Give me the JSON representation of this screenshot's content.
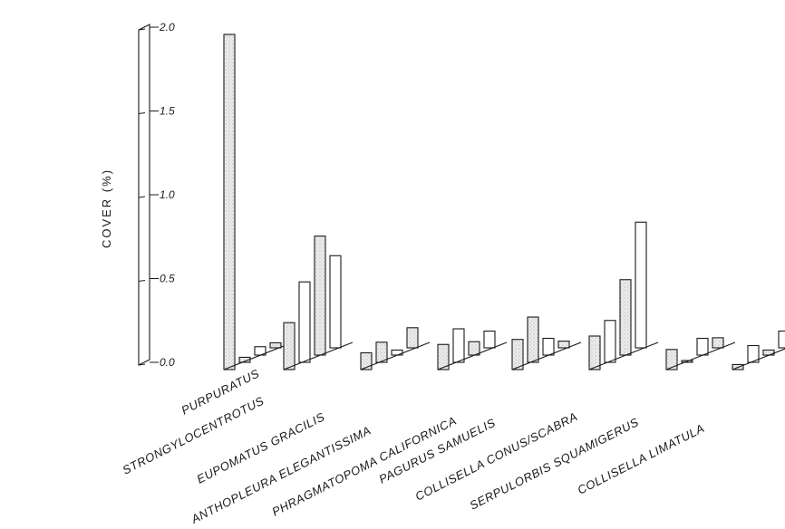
{
  "chart_data": {
    "type": "bar",
    "title": "",
    "ylabel": "COVER (%)",
    "ylim": [
      0,
      2.0
    ],
    "yticks": [
      "0.0",
      "0.5",
      "1.0",
      "1.5",
      "2.0"
    ],
    "categories": [
      "STRONGYLOCENTROTUS PURPURATUS",
      "ANTHOPLEURA ELEGANTISSIMA",
      "EUPOMATUS GRACILIS",
      "PHRAGMATOPOMA CALIFORNICA",
      "PAGURUS SAMUELIS",
      "COLLISELLA CONUS/SCABRA",
      "SERPULORBIS SQUAMIGERUS",
      "COLLISELLA LIMATULA"
    ],
    "label_lines": [
      [
        "STRONGYLOCENTROTUS",
        "PURPURATUS"
      ],
      [
        "ANTHOPLEURA ELEGANTISSIMA"
      ],
      [
        "EUPOMATUS GRACILIS"
      ],
      [
        "PHRAGMATOPOMA CALIFORNICA"
      ],
      [
        "PAGURUS SAMUELIS"
      ],
      [
        "COLLISELLA CONUS/SCABRA"
      ],
      [
        "SERPULORBIS SQUAMIGERUS"
      ],
      [
        "COLLISELLA LIMATULA"
      ]
    ],
    "series": [
      {
        "values": [
          2.0,
          0.28,
          0.1,
          0.15,
          0.18,
          0.2,
          0.12,
          0.03
        ]
      },
      {
        "values": [
          0.03,
          0.48,
          0.12,
          0.2,
          0.27,
          0.25,
          0.0,
          0.1
        ]
      },
      {
        "values": [
          0.05,
          0.71,
          0.03,
          0.08,
          0.1,
          0.45,
          0.1,
          0.03
        ]
      },
      {
        "values": [
          0.03,
          0.55,
          0.12,
          0.1,
          0.04,
          0.75,
          0.06,
          0.1
        ]
      }
    ]
  }
}
